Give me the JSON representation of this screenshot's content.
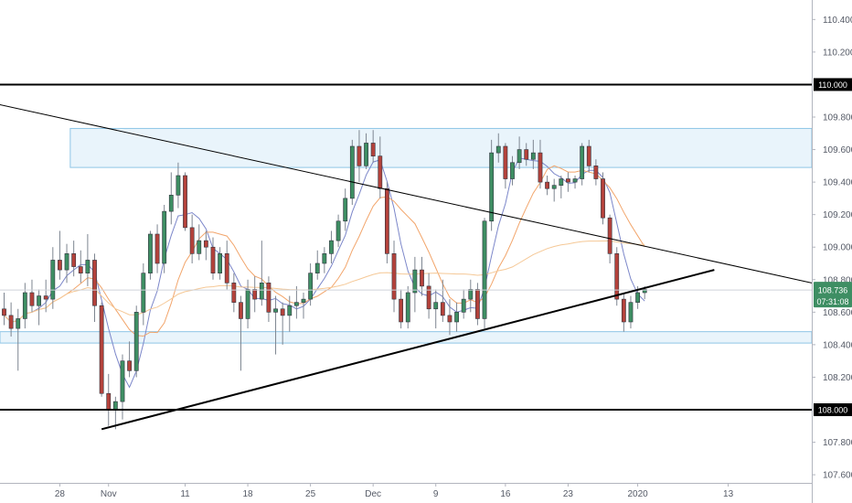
{
  "chart_data": {
    "type": "candlestick",
    "y_axis": {
      "position": "right",
      "ylim": [
        107.55,
        110.52
      ],
      "ticks": [
        "110.400",
        "110.200",
        "109.800",
        "109.600",
        "109.400",
        "109.200",
        "109.000",
        "108.800",
        "108.600",
        "108.400",
        "108.200",
        "107.800",
        "107.600"
      ],
      "tick_values": [
        110.4,
        110.2,
        109.8,
        109.6,
        109.4,
        109.2,
        109.0,
        108.8,
        108.6,
        108.4,
        108.2,
        107.8,
        107.6
      ]
    },
    "x_axis": {
      "labels": [
        {
          "text": "28",
          "bar": 8
        },
        {
          "text": "Nov",
          "bar": 15
        },
        {
          "text": "11",
          "bar": 26
        },
        {
          "text": "18",
          "bar": 35
        },
        {
          "text": "25",
          "bar": 44
        },
        {
          "text": "Dec",
          "bar": 53
        },
        {
          "text": "9",
          "bar": 62
        },
        {
          "text": "16",
          "bar": 72
        },
        {
          "text": "23",
          "bar": 81
        },
        {
          "text": "2020",
          "bar": 91
        },
        {
          "text": "13",
          "bar": 104
        }
      ],
      "bar_range": [
        0,
        116
      ]
    },
    "horizontal_levels": [
      {
        "value": 110.0,
        "label": "110.000"
      },
      {
        "value": 108.0,
        "label": "108.000"
      }
    ],
    "current_price": {
      "value": 108.736,
      "label": "108.736",
      "countdown": "07:31:08"
    },
    "zones": [
      {
        "bar_from": 9.5,
        "bar_to": 116,
        "low": 109.49,
        "high": 109.73
      },
      {
        "bar_from": -2,
        "bar_to": 116,
        "low": 108.41,
        "high": 108.48
      }
    ],
    "trendlines": [
      {
        "from": {
          "bar": -1,
          "value": 109.88
        },
        "to": {
          "bar": 116,
          "value": 108.78
        },
        "width": 1
      },
      {
        "from": {
          "bar": 14,
          "value": 107.88
        },
        "to": {
          "bar": 102,
          "value": 108.86
        },
        "width": 2
      }
    ],
    "ohlc": [
      [
        108.62,
        108.72,
        108.52,
        108.58
      ],
      [
        108.58,
        108.66,
        108.45,
        108.5
      ],
      [
        108.5,
        108.62,
        108.24,
        108.56
      ],
      [
        108.56,
        108.78,
        108.5,
        108.72
      ],
      [
        108.72,
        108.8,
        108.6,
        108.64
      ],
      [
        108.64,
        108.74,
        108.52,
        108.7
      ],
      [
        108.7,
        108.8,
        108.6,
        108.68
      ],
      [
        108.68,
        109.0,
        108.62,
        108.92
      ],
      [
        108.92,
        109.1,
        108.8,
        108.86
      ],
      [
        108.86,
        109.02,
        108.78,
        108.96
      ],
      [
        108.96,
        109.04,
        108.82,
        108.88
      ],
      [
        108.88,
        108.98,
        108.78,
        108.84
      ],
      [
        108.84,
        109.08,
        108.76,
        108.92
      ],
      [
        108.92,
        108.96,
        108.54,
        108.64
      ],
      [
        108.64,
        108.66,
        108.08,
        108.1
      ],
      [
        108.1,
        108.22,
        107.9,
        108.0
      ],
      [
        108.0,
        108.08,
        107.88,
        108.05
      ],
      [
        108.05,
        108.34,
        107.94,
        108.3
      ],
      [
        108.3,
        108.42,
        108.2,
        108.24
      ],
      [
        108.24,
        108.64,
        108.2,
        108.6
      ],
      [
        108.6,
        108.9,
        108.52,
        108.84
      ],
      [
        108.84,
        109.1,
        108.8,
        109.08
      ],
      [
        109.08,
        109.14,
        108.84,
        108.9
      ],
      [
        108.9,
        109.26,
        108.84,
        109.22
      ],
      [
        109.22,
        109.46,
        109.14,
        109.32
      ],
      [
        109.32,
        109.52,
        109.24,
        109.44
      ],
      [
        109.44,
        109.46,
        109.1,
        109.12
      ],
      [
        109.12,
        109.2,
        108.9,
        108.96
      ],
      [
        108.96,
        109.14,
        108.92,
        109.04
      ],
      [
        109.04,
        109.1,
        108.92,
        109.0
      ],
      [
        109.0,
        109.06,
        108.8,
        108.84
      ],
      [
        108.84,
        109.0,
        108.8,
        108.96
      ],
      [
        108.96,
        109.04,
        108.74,
        108.78
      ],
      [
        108.78,
        108.84,
        108.6,
        108.66
      ],
      [
        108.66,
        108.7,
        108.24,
        108.56
      ],
      [
        108.56,
        108.8,
        108.5,
        108.74
      ],
      [
        108.74,
        108.82,
        108.6,
        108.68
      ],
      [
        108.68,
        109.04,
        108.64,
        108.78
      ],
      [
        108.78,
        108.82,
        108.54,
        108.6
      ],
      [
        108.6,
        108.7,
        108.34,
        108.62
      ],
      [
        108.62,
        108.66,
        108.4,
        108.58
      ],
      [
        108.58,
        108.7,
        108.48,
        108.64
      ],
      [
        108.64,
        108.76,
        108.56,
        108.66
      ],
      [
        108.66,
        108.72,
        108.56,
        108.68
      ],
      [
        108.68,
        108.9,
        108.64,
        108.84
      ],
      [
        108.84,
        108.98,
        108.8,
        108.9
      ],
      [
        108.9,
        109.0,
        108.84,
        108.96
      ],
      [
        108.96,
        109.1,
        108.9,
        109.04
      ],
      [
        109.04,
        109.2,
        109.0,
        109.16
      ],
      [
        109.16,
        109.36,
        109.1,
        109.3
      ],
      [
        109.3,
        109.66,
        109.26,
        109.62
      ],
      [
        109.62,
        109.72,
        109.4,
        109.5
      ],
      [
        109.5,
        109.7,
        109.48,
        109.64
      ],
      [
        109.64,
        109.72,
        109.52,
        109.56
      ],
      [
        109.56,
        109.68,
        109.3,
        109.36
      ],
      [
        109.36,
        109.4,
        108.9,
        108.96
      ],
      [
        108.96,
        109.04,
        108.6,
        108.68
      ],
      [
        108.68,
        108.74,
        108.5,
        108.54
      ],
      [
        108.54,
        108.76,
        108.5,
        108.72
      ],
      [
        108.72,
        108.94,
        108.6,
        108.86
      ],
      [
        108.86,
        108.94,
        108.7,
        108.76
      ],
      [
        108.76,
        108.84,
        108.56,
        108.62
      ],
      [
        108.62,
        108.74,
        108.5,
        108.66
      ],
      [
        108.66,
        108.8,
        108.54,
        108.58
      ],
      [
        108.58,
        108.68,
        108.46,
        108.54
      ],
      [
        108.54,
        108.66,
        108.48,
        108.6
      ],
      [
        108.6,
        108.74,
        108.56,
        108.68
      ],
      [
        108.68,
        108.8,
        108.6,
        108.74
      ],
      [
        108.74,
        108.78,
        108.52,
        108.56
      ],
      [
        108.56,
        109.18,
        108.5,
        109.16
      ],
      [
        109.16,
        109.66,
        109.1,
        109.58
      ],
      [
        109.58,
        109.7,
        109.52,
        109.62
      ],
      [
        109.62,
        109.64,
        109.36,
        109.42
      ],
      [
        109.42,
        109.56,
        109.38,
        109.52
      ],
      [
        109.52,
        109.68,
        109.48,
        109.6
      ],
      [
        109.6,
        109.64,
        109.5,
        109.54
      ],
      [
        109.54,
        109.66,
        109.48,
        109.58
      ],
      [
        109.58,
        109.66,
        109.36,
        109.4
      ],
      [
        109.4,
        109.44,
        109.32,
        109.36
      ],
      [
        109.36,
        109.42,
        109.28,
        109.38
      ],
      [
        109.38,
        109.44,
        109.3,
        109.42
      ],
      [
        109.42,
        109.46,
        109.34,
        109.4
      ],
      [
        109.4,
        109.44,
        109.36,
        109.42
      ],
      [
        109.42,
        109.64,
        109.38,
        109.62
      ],
      [
        109.62,
        109.66,
        109.46,
        109.5
      ],
      [
        109.5,
        109.54,
        109.38,
        109.42
      ],
      [
        109.42,
        109.46,
        109.14,
        109.18
      ],
      [
        109.18,
        109.2,
        108.9,
        108.96
      ],
      [
        108.96,
        109.0,
        108.64,
        108.68
      ],
      [
        108.68,
        108.72,
        108.48,
        108.54
      ],
      [
        108.54,
        108.7,
        108.5,
        108.66
      ],
      [
        108.66,
        108.76,
        108.62,
        108.72
      ],
      [
        108.72,
        108.76,
        108.68,
        108.74
      ]
    ],
    "moving_averages": [
      {
        "name": "",
        "period": 5,
        "color": "#7b86c9"
      },
      {
        "name": "",
        "period": 10,
        "color": "#f2a56b"
      },
      {
        "name": "",
        "period": 60,
        "color": "#f5c896"
      }
    ],
    "colors": {
      "up": "#3e8e63",
      "down": "#b4423b",
      "zone_fill": "#e9f4fb",
      "zone_border": "#8ec5e6",
      "badge": "#30343e",
      "price_line": "#cfd3da"
    }
  }
}
